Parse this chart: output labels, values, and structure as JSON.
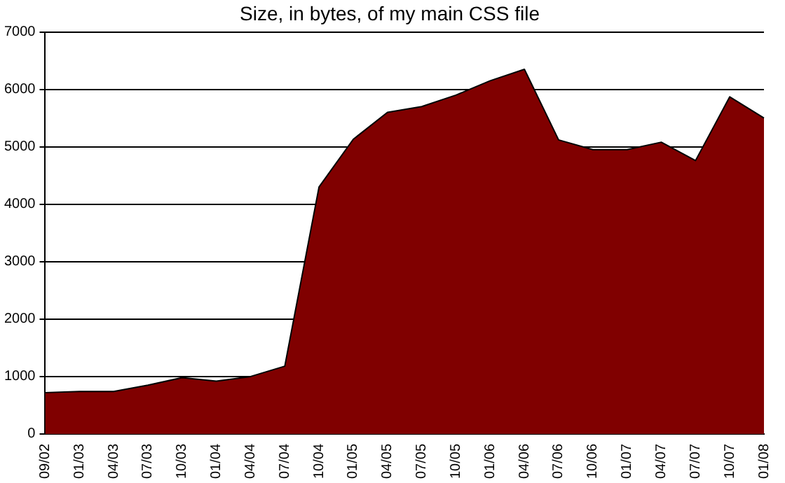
{
  "chart_data": {
    "type": "area",
    "title": "Size, in bytes, of my main CSS file",
    "categories": [
      "09/02",
      "01/03",
      "04/03",
      "07/03",
      "10/03",
      "01/04",
      "04/04",
      "07/04",
      "10/04",
      "01/05",
      "04/05",
      "07/05",
      "10/05",
      "01/06",
      "04/06",
      "07/06",
      "10/06",
      "01/07",
      "04/07",
      "07/07",
      "10/07",
      "01/08"
    ],
    "series": [
      {
        "color": "#800000",
        "values": [
          720,
          740,
          740,
          850,
          980,
          920,
          1000,
          1180,
          4300,
          5130,
          5600,
          5700,
          5900,
          6150,
          6350,
          5120,
          4950,
          4950,
          5080,
          4760,
          5870,
          5500
        ]
      }
    ],
    "ylim": [
      0,
      7000
    ],
    "yticks": [
      0,
      1000,
      2000,
      3000,
      4000,
      5000,
      6000,
      7000
    ],
    "grid": "y",
    "legend": false
  }
}
